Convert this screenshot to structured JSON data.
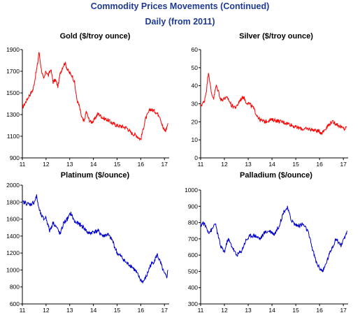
{
  "header": {
    "title": "Commodity Prices Movements (Continued)",
    "subtitle": "Daily (from 2011)"
  },
  "colors": {
    "gold": "#ff0000",
    "silver": "#ff0000",
    "platinum": "#0000cc",
    "palladium": "#0000cc"
  },
  "chart_data": [
    {
      "id": "gold",
      "type": "line",
      "title": "Gold ($/troy ounce)",
      "xlabel": "",
      "ylabel": "",
      "xlim": [
        11,
        17.2
      ],
      "ylim": [
        900,
        1900
      ],
      "xticks": [
        "11",
        "12",
        "13",
        "14",
        "15",
        "16",
        "17"
      ],
      "yticks": [
        "900",
        "1100",
        "1300",
        "1500",
        "1700",
        "1900"
      ],
      "grid": false,
      "x": [
        11.0,
        11.15,
        11.3,
        11.45,
        11.55,
        11.65,
        11.7,
        11.8,
        11.9,
        12.0,
        12.1,
        12.2,
        12.3,
        12.4,
        12.5,
        12.6,
        12.7,
        12.8,
        12.9,
        13.0,
        13.1,
        13.2,
        13.3,
        13.4,
        13.5,
        13.6,
        13.7,
        13.8,
        13.9,
        14.0,
        14.2,
        14.4,
        14.6,
        14.8,
        15.0,
        15.2,
        15.4,
        15.6,
        15.8,
        16.0,
        16.2,
        16.4,
        16.6,
        16.8,
        16.95,
        17.05,
        17.15
      ],
      "values": [
        1360,
        1420,
        1480,
        1530,
        1650,
        1780,
        1880,
        1720,
        1620,
        1700,
        1660,
        1720,
        1600,
        1620,
        1560,
        1680,
        1740,
        1780,
        1720,
        1680,
        1660,
        1600,
        1440,
        1380,
        1280,
        1230,
        1330,
        1260,
        1230,
        1240,
        1310,
        1270,
        1250,
        1220,
        1200,
        1190,
        1180,
        1130,
        1110,
        1070,
        1260,
        1350,
        1330,
        1290,
        1170,
        1150,
        1220
      ]
    },
    {
      "id": "silver",
      "type": "line",
      "title": "Silver ($/troy ounce)",
      "xlabel": "",
      "ylabel": "",
      "xlim": [
        11,
        17.2
      ],
      "ylim": [
        0,
        60
      ],
      "xticks": [
        "11",
        "12",
        "13",
        "14",
        "15",
        "16",
        "17"
      ],
      "yticks": [
        "0",
        "10",
        "20",
        "30",
        "40",
        "50",
        "60"
      ],
      "grid": false,
      "x": [
        11.0,
        11.15,
        11.25,
        11.33,
        11.45,
        11.55,
        11.65,
        11.75,
        11.85,
        12.0,
        12.15,
        12.3,
        12.5,
        12.65,
        12.8,
        12.9,
        13.05,
        13.2,
        13.35,
        13.5,
        13.7,
        13.9,
        14.1,
        14.4,
        14.7,
        15.0,
        15.3,
        15.6,
        15.9,
        16.1,
        16.3,
        16.5,
        16.7,
        16.9,
        17.05,
        17.15
      ],
      "values": [
        29,
        31,
        38,
        48,
        36,
        33,
        40,
        37,
        32,
        33,
        33,
        29,
        28,
        32,
        34,
        31,
        30,
        28,
        24,
        21,
        20,
        21,
        21,
        20,
        19,
        17,
        16,
        16,
        15,
        14,
        17,
        20,
        19,
        17,
        16,
        17
      ]
    },
    {
      "id": "platinum",
      "type": "line",
      "title": "Platinum ($/ounce)",
      "xlabel": "",
      "ylabel": "",
      "xlim": [
        11,
        17.2
      ],
      "ylim": [
        600,
        2000
      ],
      "xticks": [
        "11",
        "12",
        "13",
        "14",
        "15",
        "16",
        "17"
      ],
      "yticks": [
        "600",
        "800",
        "1000",
        "1200",
        "1400",
        "1600",
        "1800",
        "2000"
      ],
      "grid": false,
      "x": [
        11.0,
        11.15,
        11.3,
        11.5,
        11.6,
        11.7,
        11.8,
        11.9,
        12.0,
        12.15,
        12.3,
        12.45,
        12.6,
        12.75,
        12.9,
        13.05,
        13.2,
        13.4,
        13.6,
        13.8,
        14.0,
        14.2,
        14.4,
        14.6,
        14.8,
        15.0,
        15.2,
        15.4,
        15.6,
        15.8,
        16.0,
        16.1,
        16.25,
        16.4,
        16.55,
        16.7,
        16.85,
        17.0,
        17.1,
        17.15
      ],
      "values": [
        1800,
        1790,
        1770,
        1800,
        1870,
        1720,
        1640,
        1600,
        1620,
        1460,
        1560,
        1500,
        1420,
        1560,
        1600,
        1670,
        1570,
        1540,
        1500,
        1430,
        1450,
        1460,
        1400,
        1420,
        1350,
        1200,
        1150,
        1080,
        1050,
        980,
        880,
        860,
        930,
        1050,
        1100,
        1180,
        1070,
        950,
        920,
        1000
      ]
    },
    {
      "id": "palladium",
      "type": "line",
      "title": "Palladium ($/ounce)",
      "xlabel": "",
      "ylabel": "",
      "xlim": [
        11,
        17.2
      ],
      "ylim": [
        300,
        1000
      ],
      "xticks": [
        "11",
        "12",
        "13",
        "14",
        "15",
        "16",
        "17"
      ],
      "yticks": [
        "300",
        "400",
        "500",
        "600",
        "700",
        "800",
        "900",
        "1000"
      ],
      "grid": false,
      "x": [
        11.0,
        11.1,
        11.2,
        11.35,
        11.5,
        11.6,
        11.7,
        11.85,
        12.0,
        12.15,
        12.3,
        12.5,
        12.7,
        12.9,
        13.1,
        13.3,
        13.5,
        13.7,
        13.9,
        14.1,
        14.3,
        14.5,
        14.65,
        14.8,
        14.95,
        15.1,
        15.3,
        15.5,
        15.7,
        15.85,
        16.0,
        16.15,
        16.3,
        16.5,
        16.7,
        16.9,
        17.05,
        17.15
      ],
      "values": [
        780,
        800,
        780,
        740,
        760,
        800,
        740,
        650,
        620,
        700,
        660,
        600,
        620,
        690,
        720,
        720,
        700,
        740,
        750,
        730,
        780,
        870,
        890,
        820,
        790,
        780,
        790,
        750,
        640,
        560,
        520,
        500,
        560,
        640,
        700,
        660,
        700,
        750
      ]
    }
  ]
}
